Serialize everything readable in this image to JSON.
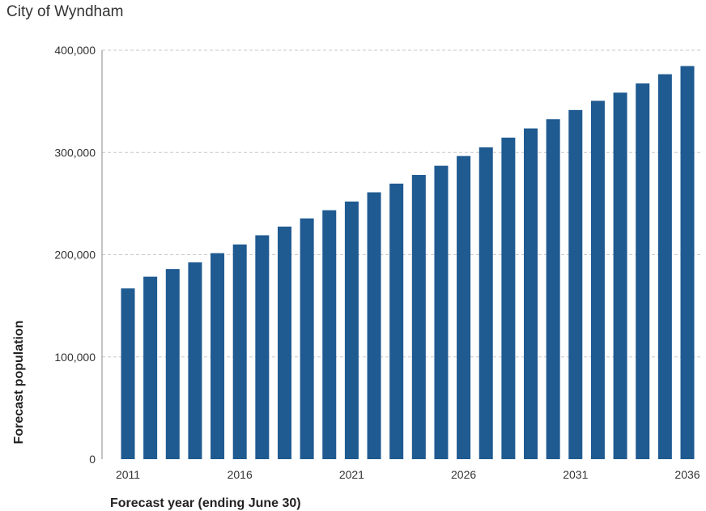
{
  "chart_data": {
    "type": "bar",
    "title": "City of Wyndham",
    "xlabel": "Forecast year (ending June 30)",
    "ylabel": "Forecast population",
    "ylim": [
      0,
      400000
    ],
    "yticks": [
      "0",
      "100,000",
      "200,000",
      "300,000",
      "400,000"
    ],
    "ytick_values": [
      0,
      100000,
      200000,
      300000,
      400000
    ],
    "xtick_labels": [
      "2011",
      "2016",
      "2021",
      "2026",
      "2031",
      "2036"
    ],
    "grid": true,
    "color": "#1f5a91",
    "categories": [
      2011,
      2012,
      2013,
      2014,
      2015,
      2016,
      2017,
      2018,
      2019,
      2020,
      2021,
      2022,
      2023,
      2024,
      2025,
      2026,
      2027,
      2028,
      2029,
      2030,
      2031,
      2032,
      2033,
      2034,
      2035,
      2036
    ],
    "values": [
      167000,
      178500,
      186000,
      192500,
      201500,
      210000,
      219000,
      227500,
      235500,
      243500,
      252000,
      261000,
      269500,
      278000,
      287000,
      296500,
      305000,
      314500,
      323500,
      332500,
      341500,
      350500,
      358500,
      367500,
      376500,
      384500
    ]
  }
}
